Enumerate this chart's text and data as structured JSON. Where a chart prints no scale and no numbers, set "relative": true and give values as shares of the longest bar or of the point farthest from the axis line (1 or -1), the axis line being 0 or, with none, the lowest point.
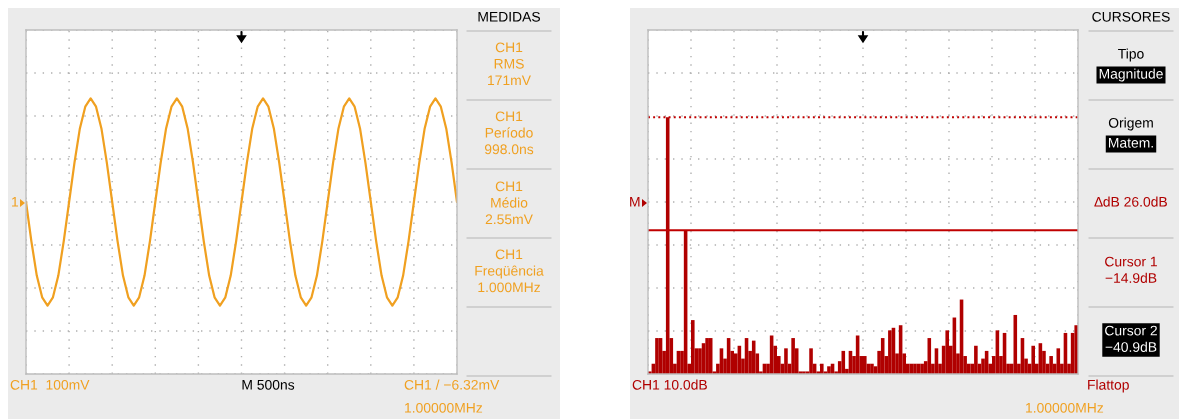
{
  "chart_data": [
    {
      "type": "line",
      "relative": true,
      "categories": [
        null,
        null,
        null,
        null,
        null,
        null,
        null,
        null,
        null,
        null,
        null,
        null,
        null,
        null,
        null,
        null,
        null,
        null,
        null,
        null,
        null,
        null,
        null,
        null,
        null,
        null,
        null,
        null,
        null,
        null,
        null,
        null,
        null,
        null,
        null,
        null,
        null,
        null,
        null,
        null,
        null,
        null,
        null,
        null,
        null,
        null,
        null,
        null,
        null,
        null,
        null,
        null,
        null,
        null,
        null,
        null,
        null,
        null,
        null,
        null,
        null,
        null,
        null,
        null,
        null,
        null,
        null,
        null,
        null,
        null,
        null,
        null,
        null,
        null,
        null,
        null,
        null,
        null,
        null,
        null,
        null
      ],
      "series": [
        {
          "color": "#f0a020",
          "values": [
            0,
            -0.38,
            -0.71,
            -0.92,
            -1,
            -0.92,
            -0.71,
            -0.38,
            0,
            0.38,
            0.71,
            0.92,
            1,
            0.92,
            0.71,
            0.38,
            0,
            -0.38,
            -0.71,
            -0.92,
            -1,
            -0.92,
            -0.71,
            -0.38,
            0,
            0.38,
            0.71,
            0.92,
            1,
            0.92,
            0.71,
            0.38,
            0,
            -0.38,
            -0.71,
            -0.92,
            -1,
            -0.92,
            -0.71,
            -0.38,
            0,
            0.38,
            0.71,
            0.92,
            1,
            0.92,
            0.71,
            0.38,
            0,
            -0.38,
            -0.71,
            -0.92,
            -1,
            -0.92,
            -0.71,
            -0.38,
            0,
            0.38,
            0.71,
            0.92,
            1,
            0.92,
            0.71,
            0.38,
            0,
            -0.38,
            -0.71,
            -0.92,
            -1,
            -0.92,
            -0.71,
            -0.38,
            0,
            0.38,
            0.71,
            0.92,
            1,
            0.92,
            0.71,
            0.38,
            0
          ]
        }
      ],
      "grid": true,
      "tick_labels": false,
      "legend": false,
      "annotations": [
        "MEDIDAS",
        "CH1\nRMS\n171mV",
        "CH1\nPeríodo\n998.0ns",
        "CH1\nMédio\n2.55mV",
        "CH1\nFreqüência\n1.000MHz",
        "CH1  100mV",
        "M 500ns",
        "CH1 / −6.32mV",
        "1.00000MHz",
        "1"
      ]
    },
    {
      "type": "bar",
      "relative": true,
      "categories": [
        null,
        null,
        null,
        null,
        null,
        null,
        null,
        null,
        null,
        null,
        null,
        null,
        null,
        null,
        null,
        null,
        null,
        null,
        null,
        null,
        null,
        null,
        null,
        null,
        null,
        null,
        null,
        null,
        null,
        null,
        null,
        null,
        null,
        null,
        null,
        null,
        null,
        null,
        null,
        null,
        null,
        null,
        null,
        null,
        null,
        null,
        null,
        null,
        null,
        null,
        null,
        null,
        null,
        null,
        null,
        null,
        null,
        null,
        null,
        null,
        null,
        null,
        null,
        null,
        null,
        null,
        null,
        null,
        null,
        null,
        null,
        null,
        null,
        null,
        null,
        null,
        null,
        null,
        null,
        null,
        null,
        null,
        null,
        null,
        null,
        null,
        null,
        null,
        null,
        null,
        null,
        null,
        null,
        null,
        null,
        null,
        null,
        null,
        null,
        null,
        null,
        null,
        null,
        null,
        null,
        null,
        null,
        null,
        null,
        null,
        null,
        null,
        null,
        null,
        null,
        null,
        null,
        null,
        null,
        null
      ],
      "series": [
        {
          "color": "#b00000",
          "values": [
            0.01,
            0.04,
            0.14,
            0.14,
            0.09,
            1.0,
            0.14,
            0.04,
            0.09,
            0.09,
            0.56,
            0.04,
            0.21,
            0.1,
            0.1,
            0.12,
            0.14,
            0.14,
            0.01,
            0.04,
            0.1,
            0.06,
            0.14,
            0.09,
            0.08,
            0.11,
            0.06,
            0.14,
            0.09,
            0.13,
            0.08,
            0.01,
            0.04,
            0.04,
            0.15,
            0.11,
            0.07,
            0.04,
            0.1,
            0.04,
            0.14,
            0.1,
            0.01,
            0.01,
            0.01,
            0.1,
            0.04,
            0.01,
            0.04,
            0.01,
            0.03,
            0.04,
            0.01,
            0.05,
            0.09,
            0.02,
            0.09,
            0.07,
            0.15,
            0.07,
            0.07,
            0.04,
            0.04,
            0.03,
            0.09,
            0.14,
            0.07,
            0.17,
            0.18,
            0.08,
            0.19,
            0.08,
            0.04,
            0.04,
            0.04,
            0.04,
            0.04,
            0.05,
            0.14,
            0.04,
            0.1,
            0.04,
            0.11,
            0.17,
            0.11,
            0.22,
            0.08,
            0.29,
            0.07,
            0.04,
            0.04,
            0.11,
            0.04,
            0.06,
            0.09,
            0.04,
            0.07,
            0.17,
            0.07,
            0.16,
            0.04,
            0.04,
            0.23,
            0.04,
            0.14,
            0.06,
            0.04,
            0.11,
            0.04,
            0.12,
            0.09,
            0.04,
            0.07,
            0.04,
            0.1,
            0.04,
            0.16,
            0.04,
            0.16,
            0.19
          ]
        }
      ],
      "ref_lines": [
        {
          "axis": "y",
          "value": 1.0,
          "color": "#c00000",
          "line_style": "dotted"
        },
        {
          "axis": "y",
          "value": 0.56,
          "color": "#c00000",
          "line_style": "solid"
        }
      ],
      "grid": true,
      "tick_labels": false,
      "legend": false,
      "annotations": [
        "CURSORES",
        "Tipo",
        "Magnitude",
        "Origem",
        "Matem.",
        "∆dB 26.0dB",
        "Cursor 1\n−14.9dB",
        "Cursor 2\n−40.9dB",
        "CH1 10.0dB",
        "Flattop",
        "1.00000MHz",
        "M"
      ]
    }
  ]
}
